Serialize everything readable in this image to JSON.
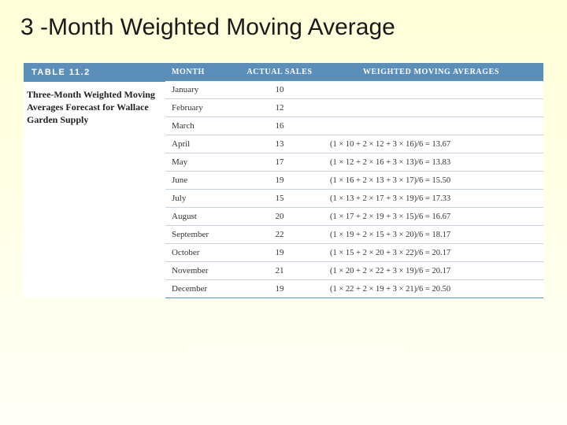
{
  "title": "3 -Month Weighted Moving Average",
  "table_label": "TABLE 11.2",
  "caption": "Three-Month Weighted Moving Averages Forecast for Wallace Garden Supply",
  "colors": {
    "header_bg": "#5b8fb9",
    "header_text": "#ffffff",
    "border": "#c8d4e0",
    "slide_bg_top": "#ffffd8",
    "slide_bg_bottom": "#fffff8",
    "panel_bg": "#ffffff",
    "text": "#333333"
  },
  "columns": {
    "month": "MONTH",
    "sales": "ACTUAL SALES",
    "wma": "WEIGHTED MOVING AVERAGES"
  },
  "rows": [
    {
      "month": "January",
      "sales": "10",
      "wma": ""
    },
    {
      "month": "February",
      "sales": "12",
      "wma": ""
    },
    {
      "month": "March",
      "sales": "16",
      "wma": ""
    },
    {
      "month": "April",
      "sales": "13",
      "wma": "(1 × 10 + 2 × 12 + 3 × 16)/6 = 13.67"
    },
    {
      "month": "May",
      "sales": "17",
      "wma": "(1 × 12 + 2 × 16 + 3 × 13)/6 = 13.83"
    },
    {
      "month": "June",
      "sales": "19",
      "wma": "(1 × 16 + 2 × 13 + 3 × 17)/6 = 15.50"
    },
    {
      "month": "July",
      "sales": "15",
      "wma": "(1 × 13 + 2 × 17 + 3 × 19)/6 = 17.33"
    },
    {
      "month": "August",
      "sales": "20",
      "wma": "(1 × 17 + 2 × 19 + 3 × 15)/6 = 16.67"
    },
    {
      "month": "September",
      "sales": "22",
      "wma": "(1 × 19 + 2 × 15 + 3 × 20)/6 = 18.17"
    },
    {
      "month": "October",
      "sales": "19",
      "wma": "(1 × 15 + 2 × 20 + 3 × 22)/6 = 20.17"
    },
    {
      "month": "November",
      "sales": "21",
      "wma": "(1 × 20 + 2 × 22 + 3 × 19)/6 = 20.17"
    },
    {
      "month": "December",
      "sales": "19",
      "wma": "(1 × 22 + 2 × 19 + 3 × 21)/6 = 20.50"
    }
  ]
}
